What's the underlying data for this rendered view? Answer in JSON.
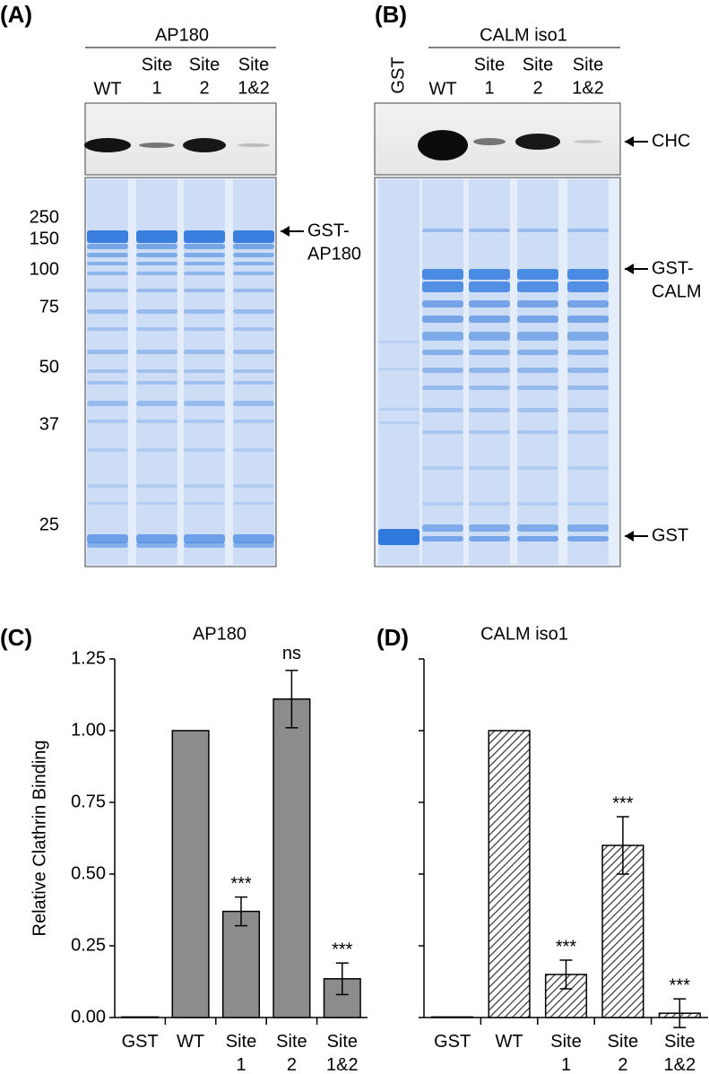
{
  "panels": {
    "A": {
      "label": "(A)",
      "title": "AP180",
      "lanes": [
        [
          "WT"
        ],
        [
          "Site",
          "1"
        ],
        [
          "Site",
          "2"
        ],
        [
          "Site",
          "1&2"
        ]
      ],
      "markers": [
        "250",
        "150",
        "100",
        "75",
        "50",
        "37",
        "25"
      ],
      "arrows": [
        [
          "GST-",
          "AP180"
        ]
      ]
    },
    "B": {
      "label": "(B)",
      "title": "CALM iso1",
      "lanes": [
        [
          "GST"
        ],
        [
          "WT"
        ],
        [
          "Site",
          "1"
        ],
        [
          "Site",
          "2"
        ],
        [
          "Site",
          "1&2"
        ]
      ],
      "arrows": [
        [
          "CHC"
        ],
        [
          "GST-",
          "CALM"
        ],
        [
          "GST"
        ]
      ]
    },
    "C": {
      "label": "(C)"
    },
    "D": {
      "label": "(D)"
    }
  },
  "chart_data": [
    {
      "type": "bar",
      "title": "AP180",
      "y_label": "Relative Clathrin Binding",
      "categories": [
        "GST",
        "WT",
        "Site 1",
        "Site 2",
        "Site 1&2"
      ],
      "values": [
        0.002,
        1.0,
        0.37,
        1.11,
        0.135
      ],
      "errors": [
        null,
        null,
        0.05,
        0.1,
        0.055
      ],
      "annotations": [
        null,
        null,
        "***",
        "ns",
        "***"
      ],
      "color": "#8c8c8c",
      "ylim": [
        0,
        1.25
      ],
      "yticks": [
        {
          "value": 0,
          "label": "0.00"
        },
        {
          "value": 0.25,
          "label": "0.25"
        },
        {
          "value": 0.5,
          "label": "0.50"
        },
        {
          "value": 0.75,
          "label": "0.75"
        },
        {
          "value": 1,
          "label": "1.00"
        },
        {
          "value": 1.25,
          "label": "1.25"
        }
      ]
    },
    {
      "type": "bar",
      "title": "CALM iso1",
      "categories": [
        "GST",
        "WT",
        "Site 1",
        "Site 2",
        "Site 1&2"
      ],
      "values": [
        0.002,
        1.0,
        0.15,
        0.6,
        0.015
      ],
      "errors": [
        null,
        null,
        0.05,
        0.1,
        0.05
      ],
      "annotations": [
        null,
        null,
        "***",
        "***",
        "***"
      ],
      "color": "hatched",
      "ylim": [
        0,
        1.25
      ],
      "yticks": [
        0,
        0.25,
        0.5,
        0.75,
        1,
        1.25
      ]
    }
  ]
}
